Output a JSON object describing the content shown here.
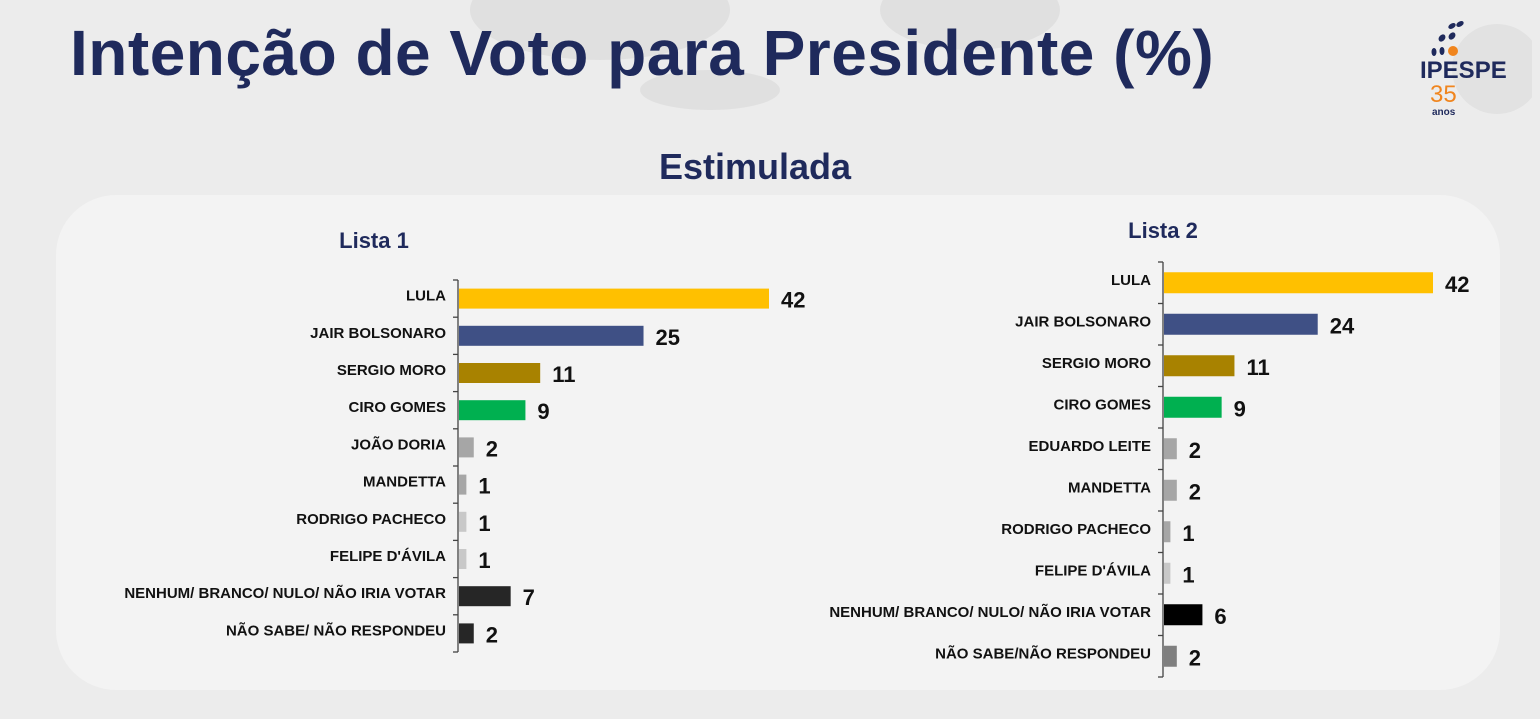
{
  "title": "Intenção de Voto para Presidente (%)",
  "subtitle": "Estimulada",
  "logo": {
    "name": "IPESPE",
    "years": "35",
    "years_label": "anos",
    "colors": {
      "blue": "#1f2a5c",
      "orange": "#f0851e"
    }
  },
  "chart_data": [
    {
      "type": "bar",
      "orientation": "horizontal",
      "title": "Lista 1",
      "categories": [
        "LULA",
        "JAIR BOLSONARO",
        "SERGIO MORO",
        "CIRO GOMES",
        "JOÃO DORIA",
        "MANDETTA",
        "RODRIGO PACHECO",
        "FELIPE D'ÁVILA",
        "NENHUM/ BRANCO/ NULO/ NÃO IRIA VOTAR",
        "NÃO SABE/ NÃO RESPONDEU"
      ],
      "values": [
        42,
        25,
        11,
        9,
        2,
        1,
        1,
        1,
        7,
        2
      ],
      "colors": [
        "#ffc000",
        "#3f5085",
        "#a88200",
        "#00b050",
        "#a6a6a6",
        "#a6a6a6",
        "#c8c8c8",
        "#c8c8c8",
        "#262626",
        "#262626"
      ],
      "xlim": [
        0,
        42
      ]
    },
    {
      "type": "bar",
      "orientation": "horizontal",
      "title": "Lista 2",
      "categories": [
        "LULA",
        "JAIR BOLSONARO",
        "SERGIO MORO",
        "CIRO GOMES",
        "EDUARDO LEITE",
        "MANDETTA",
        "RODRIGO PACHECO",
        "FELIPE D'ÁVILA",
        "NENHUM/ BRANCO/ NULO/ NÃO IRIA VOTAR",
        "NÃO SABE/NÃO RESPONDEU"
      ],
      "values": [
        42,
        24,
        11,
        9,
        2,
        2,
        1,
        1,
        6,
        2
      ],
      "colors": [
        "#ffc000",
        "#3f5085",
        "#a88200",
        "#00b050",
        "#a6a6a6",
        "#a6a6a6",
        "#a6a6a6",
        "#c8c8c8",
        "#000000",
        "#7f7f7f"
      ],
      "xlim": [
        0,
        42
      ]
    }
  ]
}
